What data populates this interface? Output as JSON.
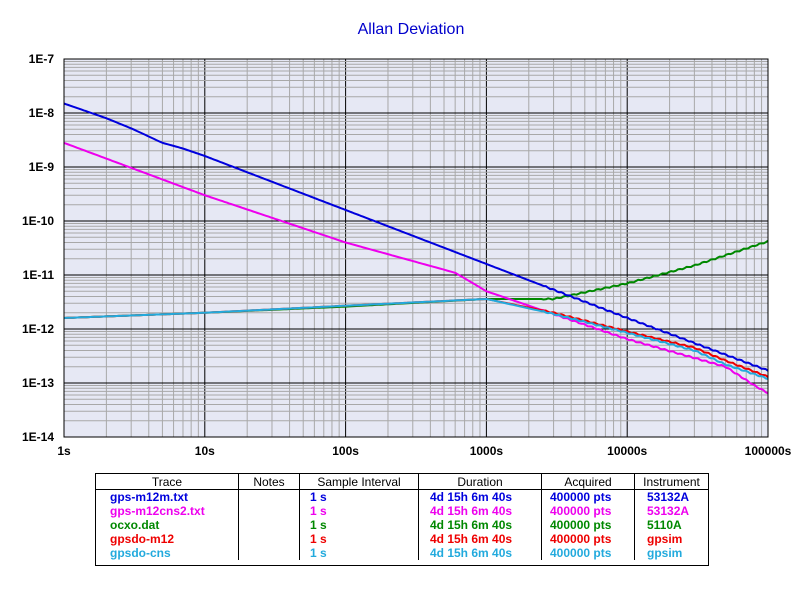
{
  "chart_data": {
    "type": "line",
    "title": "Allan Deviation",
    "x_scale": "log",
    "y_scale": "log",
    "xlim": [
      1,
      100000
    ],
    "ylim": [
      1e-14,
      1e-07
    ],
    "x_tick_labels": [
      "1s",
      "10s",
      "100s",
      "1000s",
      "10000s",
      "100000s"
    ],
    "y_tick_labels": [
      "1E-7",
      "1E-8",
      "1E-9",
      "1E-10",
      "1E-11",
      "1E-12",
      "1E-13",
      "1E-14"
    ],
    "grid": true,
    "background": "#e6e8f4",
    "series": [
      {
        "name": "gps-m12m.txt",
        "color": "#0000dd",
        "x": [
          1,
          2,
          3,
          5,
          7,
          10,
          100,
          1000,
          10000,
          100000
        ],
        "y": [
          1.5e-08,
          8e-09,
          5.2e-09,
          2.8e-09,
          2.2e-09,
          1.6e-09,
          1.6e-10,
          1.6e-11,
          1.6e-12,
          1.7e-13
        ]
      },
      {
        "name": "gps-m12cns2.txt",
        "color": "#ee00ee",
        "x": [
          1,
          10,
          100,
          600,
          1000,
          10000,
          50000,
          80000,
          100000
        ],
        "y": [
          2.8e-09,
          3e-10,
          4e-11,
          1.1e-11,
          5e-12,
          6.5e-13,
          2e-13,
          9e-14,
          6.5e-14
        ]
      },
      {
        "name": "ocxo.dat",
        "color": "#008800",
        "x": [
          1,
          10,
          100,
          1000,
          3000,
          10000,
          30000,
          100000
        ],
        "y": [
          1.6e-12,
          2e-12,
          2.6e-12,
          3.6e-12,
          3.6e-12,
          7e-12,
          1.5e-11,
          4.2e-11
        ]
      },
      {
        "name": "gpsdo-m12",
        "color": "#ee0000",
        "x": [
          1,
          10,
          100,
          1000,
          3000,
          10000,
          30000,
          50000,
          100000
        ],
        "y": [
          1.6e-12,
          2e-12,
          2.7e-12,
          3.6e-12,
          2e-12,
          9e-13,
          4.5e-13,
          2.6e-13,
          1.3e-13
        ]
      },
      {
        "name": "gpsdo-cns",
        "color": "#22aadd",
        "x": [
          1,
          10,
          100,
          1000,
          3000,
          10000,
          30000,
          50000,
          100000
        ],
        "y": [
          1.6e-12,
          2e-12,
          2.7e-12,
          3.6e-12,
          1.9e-12,
          8.5e-13,
          4e-13,
          2.2e-13,
          1.2e-13
        ]
      }
    ]
  },
  "legend": {
    "headers": [
      "Trace",
      "Notes",
      "Sample Interval",
      "Duration",
      "Acquired",
      "Instrument"
    ],
    "rows": [
      {
        "trace": "gps-m12m.txt",
        "notes": "",
        "sample_interval": "1 s",
        "duration": "4d 15h 6m 40s",
        "acquired": "400000 pts",
        "instrument": "53132A",
        "color": "#0000dd"
      },
      {
        "trace": "gps-m12cns2.txt",
        "notes": "",
        "sample_interval": "1 s",
        "duration": "4d 15h 6m 40s",
        "acquired": "400000 pts",
        "instrument": "53132A",
        "color": "#ee00ee"
      },
      {
        "trace": "ocxo.dat",
        "notes": "",
        "sample_interval": "1 s",
        "duration": "4d 15h 6m 40s",
        "acquired": "400000 pts",
        "instrument": "5110A",
        "color": "#008800"
      },
      {
        "trace": "gpsdo-m12",
        "notes": "",
        "sample_interval": "1 s",
        "duration": "4d 15h 6m 40s",
        "acquired": "400000 pts",
        "instrument": "gpsim",
        "color": "#ee0000"
      },
      {
        "trace": "gpsdo-cns",
        "notes": "",
        "sample_interval": "1 s",
        "duration": "4d 15h 6m 40s",
        "acquired": "400000 pts",
        "instrument": "gpsim",
        "color": "#22aadd"
      }
    ]
  }
}
